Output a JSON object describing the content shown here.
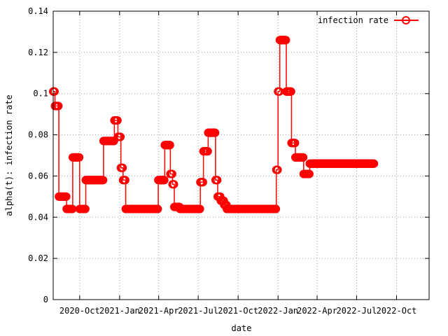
{
  "chart_data": {
    "type": "line",
    "title": "",
    "xlabel": "date",
    "ylabel": "alpha(t): infection rate",
    "ylim": [
      0,
      0.14
    ],
    "xlim": [
      "2020-08-01",
      "2022-12-15"
    ],
    "y_ticks": [
      "0",
      "0.02",
      "0.04",
      "0.06",
      "0.08",
      "0.1",
      "0.12",
      "0.14"
    ],
    "x_ticks": [
      {
        "date": "2020-10-01",
        "label": "2020-Oct"
      },
      {
        "date": "2021-01-01",
        "label": "2021-Jan"
      },
      {
        "date": "2021-04-01",
        "label": "2021-Apr"
      },
      {
        "date": "2021-07-01",
        "label": "2021-Jul"
      },
      {
        "date": "2021-10-01",
        "label": "2021-Oct"
      },
      {
        "date": "2022-01-01",
        "label": "2022-Jan"
      },
      {
        "date": "2022-04-01",
        "label": "2022-Apr"
      },
      {
        "date": "2022-07-01",
        "label": "2022-Jul"
      },
      {
        "date": "2022-10-01",
        "label": "2022-Oct"
      }
    ],
    "grid": true,
    "legend_position": "top-right",
    "series": [
      {
        "name": "infection rate",
        "color": "#ff0000",
        "marker": "circle",
        "step": true,
        "points": [
          [
            "2020-08-01",
            0.101
          ],
          [
            "2020-08-05",
            0.094
          ],
          [
            "2020-08-14",
            0.05
          ],
          [
            "2020-09-01",
            0.044
          ],
          [
            "2020-09-15",
            0.069
          ],
          [
            "2020-10-01",
            0.044
          ],
          [
            "2020-10-15",
            0.058
          ],
          [
            "2020-11-25",
            0.077
          ],
          [
            "2020-12-20",
            0.087
          ],
          [
            "2020-12-28",
            0.079
          ],
          [
            "2021-01-04",
            0.064
          ],
          [
            "2021-01-09",
            0.058
          ],
          [
            "2021-01-15",
            0.044
          ],
          [
            "2021-03-31",
            0.058
          ],
          [
            "2021-04-15",
            0.075
          ],
          [
            "2021-04-28",
            0.061
          ],
          [
            "2021-05-03",
            0.056
          ],
          [
            "2021-05-07",
            0.045
          ],
          [
            "2021-05-20",
            0.044
          ],
          [
            "2021-07-06",
            0.057
          ],
          [
            "2021-07-13",
            0.072
          ],
          [
            "2021-07-24",
            0.081
          ],
          [
            "2021-08-10",
            0.058
          ],
          [
            "2021-08-15",
            0.05
          ],
          [
            "2021-08-22",
            0.048
          ],
          [
            "2021-08-30",
            0.046
          ],
          [
            "2021-09-05",
            0.044
          ],
          [
            "2021-12-28",
            0.063
          ],
          [
            "2022-01-01",
            0.101
          ],
          [
            "2022-01-05",
            0.126
          ],
          [
            "2022-01-20",
            0.101
          ],
          [
            "2022-02-01",
            0.076
          ],
          [
            "2022-02-10",
            0.069
          ],
          [
            "2022-03-01",
            0.061
          ],
          [
            "2022-03-15",
            0.066
          ],
          [
            "2022-08-10",
            0.066
          ]
        ]
      }
    ]
  }
}
